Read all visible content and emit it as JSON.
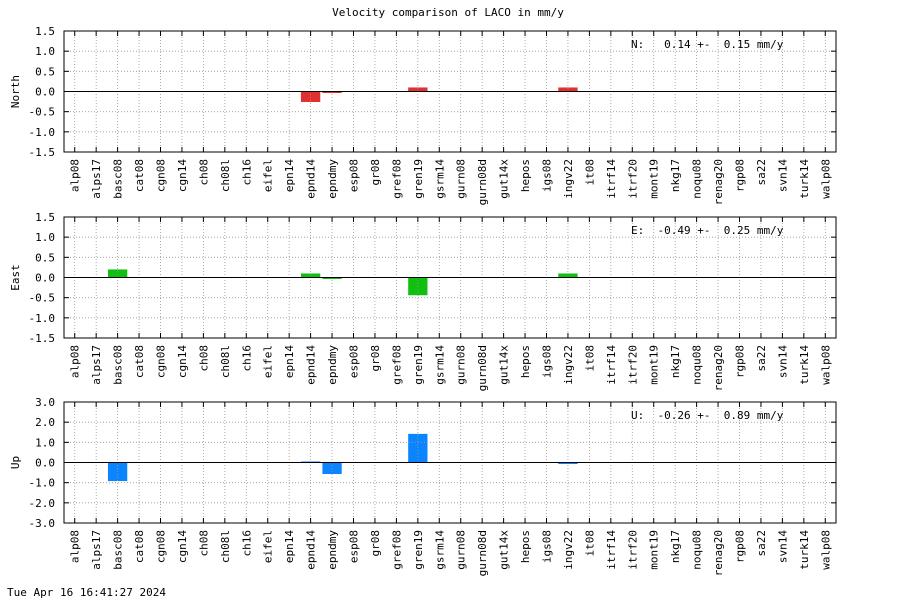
{
  "title": "Velocity comparison of LACO in mm/y",
  "timestamp": "Tue Apr 16 16:41:27 2024",
  "chart_data": {
    "type": "bar",
    "title": "Velocity comparison of LACO in mm/y",
    "categories": [
      "alp08",
      "alps17",
      "basc08",
      "cat08",
      "cgn08",
      "cgn14",
      "ch08",
      "ch08l",
      "ch16",
      "eifel",
      "epn14",
      "epnd14",
      "epndmy",
      "esp08",
      "gr08",
      "gref08",
      "gren19",
      "gsrm14",
      "gurn08",
      "gurn08d",
      "gut14x",
      "hepos",
      "igs08",
      "ingv22",
      "it08",
      "itrf14",
      "itrf20",
      "mont19",
      "nkg17",
      "noqu08",
      "renag20",
      "rgp08",
      "sa22",
      "svn14",
      "turk14",
      "walp08"
    ],
    "grid": true,
    "panels": [
      {
        "name": "North",
        "ylabel": "North",
        "ylim": [
          -1.5,
          1.5
        ],
        "yticks": [
          "1.5",
          "1.0",
          "0.5",
          "0.0",
          "-0.5",
          "-1.0",
          "-1.5"
        ],
        "color": "#e03030",
        "summary": "N:   0.14 +-  0.15 mm/y",
        "values": [
          0,
          0,
          0,
          0,
          0,
          0,
          0,
          0,
          0,
          0,
          0,
          -0.26,
          -0.03,
          0,
          0,
          0,
          0.1,
          0,
          0,
          0,
          0,
          0,
          0,
          0.1,
          0,
          0,
          0,
          0,
          0,
          0,
          0,
          0,
          0,
          0,
          0,
          0
        ]
      },
      {
        "name": "East",
        "ylabel": "East",
        "ylim": [
          -1.5,
          1.5
        ],
        "yticks": [
          "1.5",
          "1.0",
          "0.5",
          "0.0",
          "-0.5",
          "-1.0",
          "-1.5"
        ],
        "color": "#10c010",
        "summary": "E:  -0.49 +-  0.25 mm/y",
        "values": [
          0,
          0,
          0.2,
          0,
          0,
          0,
          0,
          0,
          0,
          0,
          0,
          0.1,
          -0.03,
          0,
          0,
          0,
          -0.44,
          0,
          0,
          0,
          0,
          0,
          0,
          0.1,
          0,
          0,
          0,
          0,
          0,
          0,
          0,
          0,
          0,
          0,
          0,
          0
        ]
      },
      {
        "name": "Up",
        "ylabel": "Up",
        "ylim": [
          -3.0,
          3.0
        ],
        "yticks": [
          "3.0",
          "2.0",
          "1.0",
          "0.0",
          "-1.0",
          "-2.0",
          "-3.0"
        ],
        "color": "#0a84ff",
        "summary": "U:  -0.26 +-  0.89 mm/y",
        "values": [
          0,
          0,
          -0.92,
          0,
          0,
          0,
          0,
          0,
          0,
          0,
          0,
          0.05,
          -0.57,
          0,
          0,
          0,
          1.42,
          0,
          0,
          0,
          0,
          0,
          0,
          -0.07,
          0,
          0,
          0,
          0,
          0,
          0,
          0,
          0,
          0,
          0,
          0,
          0
        ]
      }
    ]
  }
}
